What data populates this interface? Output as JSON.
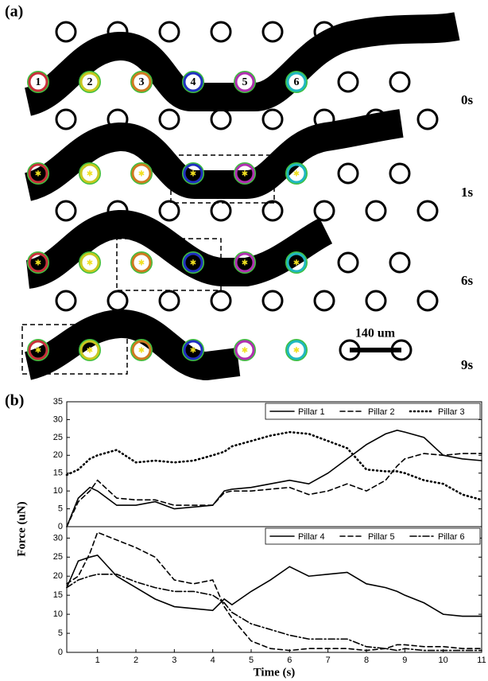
{
  "panel_a": {
    "label": "(a)",
    "pillars": [
      "1",
      "2",
      "3",
      "4",
      "5",
      "6"
    ],
    "times": [
      "0s",
      "1s",
      "6s",
      "9s"
    ],
    "scale_bar": "140 um"
  },
  "panel_b": {
    "label": "(b)",
    "xlabel": "Time (s)",
    "ylabel": "Force (uN)"
  },
  "chart_data": [
    {
      "type": "line",
      "legend": "upper right",
      "x": [
        0.2,
        0.5,
        0.8,
        1,
        1.5,
        2,
        2.5,
        3,
        3.5,
        4,
        4.3,
        4.5,
        5,
        5.5,
        6,
        6.5,
        7,
        7.5,
        8,
        8.5,
        8.8,
        9,
        9.5,
        10,
        10.5,
        11
      ],
      "xlim": [
        0.2,
        11
      ],
      "ylim": [
        0,
        35
      ],
      "yticks": [
        0,
        5,
        10,
        15,
        20,
        25,
        30,
        35
      ],
      "series": [
        {
          "name": "Pillar 1",
          "color": "#000000",
          "style": "solid",
          "values": [
            0,
            8,
            11,
            10,
            6,
            6,
            7,
            5,
            5.5,
            6,
            10,
            10.5,
            11,
            12,
            13,
            12,
            15,
            19,
            23,
            26,
            27,
            26.5,
            25,
            20,
            19,
            18.5
          ]
        },
        {
          "name": "Pillar 2",
          "color": "#000000",
          "style": "dashed",
          "values": [
            0,
            7,
            10,
            13,
            8,
            7.5,
            7.5,
            6,
            6,
            6,
            9.5,
            10,
            10,
            10.5,
            11,
            9,
            10,
            12,
            10,
            13,
            17,
            19,
            20.5,
            20,
            20.5,
            20.5
          ]
        },
        {
          "name": "Pillar 3",
          "color": "#000000",
          "style": "dotted",
          "values": [
            14.5,
            16,
            19,
            20,
            21.5,
            18,
            18.5,
            18,
            18.5,
            20,
            21,
            22.5,
            24,
            25.5,
            26.5,
            26,
            24,
            22,
            16,
            15.5,
            15.5,
            15,
            13,
            12,
            9,
            7.5
          ]
        }
      ]
    },
    {
      "type": "line",
      "legend": "upper right",
      "x": [
        0.2,
        0.5,
        0.8,
        1,
        1.5,
        2,
        2.5,
        3,
        3.5,
        4,
        4.3,
        4.5,
        5,
        5.5,
        6,
        6.5,
        7,
        7.5,
        8,
        8.5,
        8.8,
        9,
        9.5,
        10,
        10.5,
        11
      ],
      "xlim": [
        0.2,
        11
      ],
      "xticks": [
        1,
        2,
        3,
        4,
        5,
        6,
        7,
        8,
        9,
        10,
        11
      ],
      "ylim": [
        0,
        33
      ],
      "yticks": [
        0,
        5,
        10,
        15,
        20,
        25,
        30
      ],
      "series": [
        {
          "name": "Pillar 4",
          "color": "#000000",
          "style": "solid",
          "values": [
            17,
            24,
            25,
            25.5,
            20,
            17,
            14,
            12,
            11.5,
            11,
            14,
            12.5,
            16,
            19,
            22.5,
            20,
            20.5,
            21,
            18,
            17,
            16,
            15,
            13,
            10,
            9.5,
            9.5
          ]
        },
        {
          "name": "Pillar 5",
          "color": "#000000",
          "style": "dashed",
          "values": [
            18,
            20,
            26,
            31.5,
            29.5,
            27.5,
            25,
            19,
            18,
            19,
            12,
            9,
            3,
            1,
            0.5,
            1,
            1,
            1,
            0.5,
            1,
            2,
            2,
            1.5,
            1.5,
            1,
            1
          ]
        },
        {
          "name": "Pillar 6",
          "color": "#000000",
          "style": "dashdot",
          "values": [
            17,
            19,
            20,
            20.5,
            20.5,
            18.5,
            17,
            16,
            16,
            15,
            13,
            10.5,
            7.5,
            6,
            4.5,
            3.5,
            3.5,
            3.5,
            1.5,
            1,
            0.5,
            1,
            0.5,
            0.5,
            0.5,
            0.5
          ]
        }
      ]
    }
  ]
}
